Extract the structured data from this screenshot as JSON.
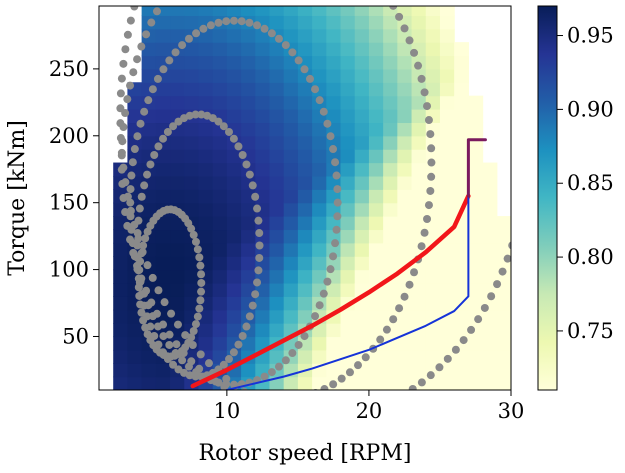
{
  "chart_data": {
    "type": "heatmap",
    "xlabel": "Rotor speed [RPM]",
    "ylabel": "Torque [kNm]",
    "xlim": [
      1.0,
      30.0
    ],
    "ylim": [
      10,
      297
    ],
    "x_ticks": [
      10,
      20,
      30
    ],
    "y_ticks": [
      50,
      100,
      150,
      200,
      250
    ],
    "grid": false,
    "colorbar": {
      "colormap": "YlGnBu",
      "vmin": 0.71,
      "vmax": 0.97,
      "ticks": [
        0.75,
        0.8,
        0.85,
        0.9,
        0.95
      ],
      "tick_labels": [
        "0.75",
        "0.80",
        "0.85",
        "0.90",
        "0.95"
      ]
    },
    "heatmap": {
      "description_of_values": "efficiency field over rotor speed and torque",
      "peak_x": 6.0,
      "peak_y": 90,
      "peak_value": 0.97,
      "cell_x_width": 1.0,
      "cell_y_height": 10
    },
    "contour_dots": [
      {
        "center_x": 6.0,
        "center_y": 90,
        "rx": 2.2,
        "ry": 55
      },
      {
        "center_x": 8.0,
        "center_y": 118,
        "rx": 4.3,
        "ry": 98
      },
      {
        "center_x": 10.5,
        "center_y": 150,
        "rx": 7.3,
        "ry": 136
      },
      {
        "center_x": 13.5,
        "center_y": 180,
        "rx": 10.9,
        "ry": 178
      },
      {
        "center_x": 17.0,
        "center_y": 215,
        "rx": 14.5,
        "ry": 225
      }
    ],
    "lines": [
      {
        "name": "",
        "color": "#f2161a",
        "width": 4.5,
        "points": [
          [
            7.6,
            13
          ],
          [
            10,
            25
          ],
          [
            12,
            36
          ],
          [
            14,
            47
          ],
          [
            16,
            58
          ],
          [
            18,
            70
          ],
          [
            20,
            83
          ],
          [
            22,
            97
          ],
          [
            24,
            113
          ],
          [
            26,
            132
          ],
          [
            27,
            155
          ]
        ]
      },
      {
        "name": "",
        "color": "#1533d8",
        "width": 2,
        "points": [
          [
            10,
            10
          ],
          [
            12,
            15
          ],
          [
            14,
            20
          ],
          [
            16,
            26
          ],
          [
            18,
            33
          ],
          [
            20,
            40
          ],
          [
            22,
            49
          ],
          [
            24,
            58
          ],
          [
            26,
            69
          ],
          [
            27,
            80
          ],
          [
            27,
            197
          ],
          [
            28.2,
            197
          ]
        ]
      },
      {
        "name": "",
        "color": "#7a1a5e",
        "width": 3,
        "points": [
          [
            27,
            155
          ],
          [
            27,
            197
          ],
          [
            28.2,
            197
          ]
        ]
      }
    ]
  }
}
